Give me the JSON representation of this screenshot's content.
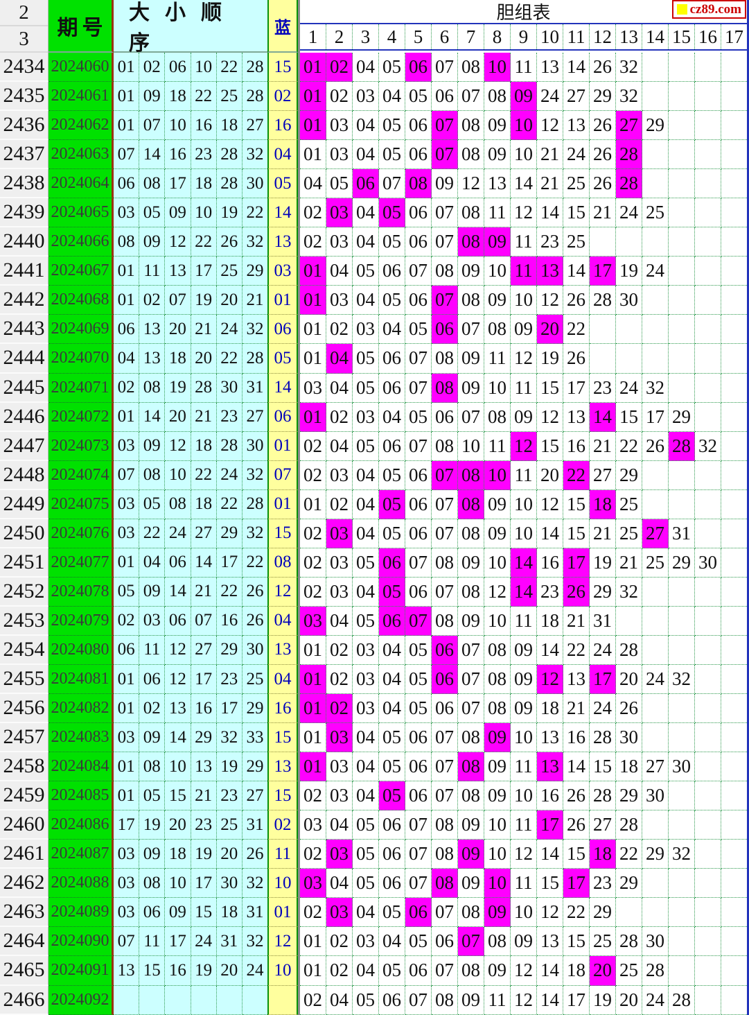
{
  "header": {
    "corner_top": "2",
    "corner_bottom": "3",
    "period_label": "期号",
    "order_label": "大小顺序",
    "blue_label": "蓝",
    "table_title": "胆组表",
    "logo_text": "cz89.com",
    "dan_columns": [
      "1",
      "2",
      "3",
      "4",
      "5",
      "6",
      "7",
      "8",
      "9",
      "10",
      "11",
      "12",
      "13",
      "14",
      "15",
      "16",
      "17"
    ]
  },
  "colors": {
    "period_bg": "#00E100",
    "order_bg": "#CCFFFF",
    "blue_bg": "#FFFF9E",
    "rownum_bg": "#EFEFEF",
    "highlight_magenta": "#FF00FF",
    "blue_text": "#0000BB",
    "grid_green": "#2E9A4E",
    "header_line_blue": "#2233BB",
    "divider_red": "#993311",
    "divider_gray": "#8A8A8A",
    "logo_red": "#CC0000",
    "logo_square_yellow": "#FFFF00"
  },
  "chart_data": {
    "type": "table",
    "title": "胆组表",
    "rows": [
      {
        "no": "2434",
        "period": "2024060",
        "order": [
          "01",
          "02",
          "06",
          "10",
          "22",
          "28"
        ],
        "blue": "15",
        "dan": [
          "01",
          "02",
          "04",
          "05",
          "06",
          "07",
          "08",
          "10",
          "11",
          "13",
          "14",
          "26",
          "32"
        ],
        "hits": [
          0,
          1,
          4,
          7
        ]
      },
      {
        "no": "2435",
        "period": "2024061",
        "order": [
          "01",
          "09",
          "18",
          "22",
          "25",
          "28"
        ],
        "blue": "02",
        "dan": [
          "01",
          "02",
          "03",
          "04",
          "05",
          "06",
          "07",
          "08",
          "09",
          "24",
          "27",
          "29",
          "32"
        ],
        "hits": [
          0,
          8
        ]
      },
      {
        "no": "2436",
        "period": "2024062",
        "order": [
          "01",
          "07",
          "10",
          "16",
          "18",
          "27"
        ],
        "blue": "16",
        "dan": [
          "01",
          "03",
          "04",
          "05",
          "06",
          "07",
          "08",
          "09",
          "10",
          "12",
          "13",
          "26",
          "27",
          "29"
        ],
        "hits": [
          0,
          5,
          8,
          12
        ]
      },
      {
        "no": "2437",
        "period": "2024063",
        "order": [
          "07",
          "14",
          "16",
          "23",
          "28",
          "32"
        ],
        "blue": "04",
        "dan": [
          "01",
          "03",
          "04",
          "05",
          "06",
          "07",
          "08",
          "09",
          "10",
          "21",
          "24",
          "26",
          "28"
        ],
        "hits": [
          5,
          12
        ]
      },
      {
        "no": "2438",
        "period": "2024064",
        "order": [
          "06",
          "08",
          "17",
          "18",
          "28",
          "30"
        ],
        "blue": "05",
        "dan": [
          "04",
          "05",
          "06",
          "07",
          "08",
          "09",
          "12",
          "13",
          "14",
          "21",
          "25",
          "26",
          "28"
        ],
        "hits": [
          2,
          4,
          12
        ]
      },
      {
        "no": "2439",
        "period": "2024065",
        "order": [
          "03",
          "05",
          "09",
          "10",
          "19",
          "22"
        ],
        "blue": "14",
        "dan": [
          "02",
          "03",
          "04",
          "05",
          "06",
          "07",
          "08",
          "11",
          "12",
          "14",
          "15",
          "21",
          "24",
          "25"
        ],
        "hits": [
          1,
          3
        ]
      },
      {
        "no": "2440",
        "period": "2024066",
        "order": [
          "08",
          "09",
          "12",
          "22",
          "26",
          "32"
        ],
        "blue": "13",
        "dan": [
          "02",
          "03",
          "04",
          "05",
          "06",
          "07",
          "08",
          "09",
          "11",
          "23",
          "25"
        ],
        "hits": [
          6,
          7
        ]
      },
      {
        "no": "2441",
        "period": "2024067",
        "order": [
          "01",
          "11",
          "13",
          "17",
          "25",
          "29"
        ],
        "blue": "03",
        "dan": [
          "01",
          "04",
          "05",
          "06",
          "07",
          "08",
          "09",
          "10",
          "11",
          "13",
          "14",
          "17",
          "19",
          "24"
        ],
        "hits": [
          0,
          8,
          9,
          11
        ]
      },
      {
        "no": "2442",
        "period": "2024068",
        "order": [
          "01",
          "02",
          "07",
          "19",
          "20",
          "21"
        ],
        "blue": "01",
        "dan": [
          "01",
          "03",
          "04",
          "05",
          "06",
          "07",
          "08",
          "09",
          "10",
          "12",
          "26",
          "28",
          "30"
        ],
        "hits": [
          0,
          5
        ]
      },
      {
        "no": "2443",
        "period": "2024069",
        "order": [
          "06",
          "13",
          "20",
          "21",
          "24",
          "32"
        ],
        "blue": "06",
        "dan": [
          "01",
          "02",
          "03",
          "04",
          "05",
          "06",
          "07",
          "08",
          "09",
          "20",
          "22"
        ],
        "hits": [
          5,
          9
        ]
      },
      {
        "no": "2444",
        "period": "2024070",
        "order": [
          "04",
          "13",
          "18",
          "20",
          "22",
          "28"
        ],
        "blue": "05",
        "dan": [
          "01",
          "04",
          "05",
          "06",
          "07",
          "08",
          "09",
          "11",
          "12",
          "19",
          "26"
        ],
        "hits": [
          1
        ]
      },
      {
        "no": "2445",
        "period": "2024071",
        "order": [
          "02",
          "08",
          "19",
          "28",
          "30",
          "31"
        ],
        "blue": "14",
        "dan": [
          "03",
          "04",
          "05",
          "06",
          "07",
          "08",
          "09",
          "10",
          "11",
          "15",
          "17",
          "23",
          "24",
          "32"
        ],
        "hits": [
          5
        ]
      },
      {
        "no": "2446",
        "period": "2024072",
        "order": [
          "01",
          "14",
          "20",
          "21",
          "23",
          "27"
        ],
        "blue": "06",
        "dan": [
          "01",
          "02",
          "03",
          "04",
          "05",
          "06",
          "07",
          "08",
          "09",
          "12",
          "13",
          "14",
          "15",
          "17",
          "29"
        ],
        "hits": [
          0,
          11
        ]
      },
      {
        "no": "2447",
        "period": "2024073",
        "order": [
          "03",
          "09",
          "12",
          "18",
          "28",
          "30"
        ],
        "blue": "01",
        "dan": [
          "02",
          "04",
          "05",
          "06",
          "07",
          "08",
          "10",
          "11",
          "12",
          "15",
          "16",
          "21",
          "22",
          "26",
          "28",
          "32"
        ],
        "hits": [
          8,
          14
        ]
      },
      {
        "no": "2448",
        "period": "2024074",
        "order": [
          "07",
          "08",
          "10",
          "22",
          "24",
          "32"
        ],
        "blue": "07",
        "dan": [
          "02",
          "03",
          "04",
          "05",
          "06",
          "07",
          "08",
          "10",
          "11",
          "20",
          "22",
          "27",
          "29"
        ],
        "hits": [
          5,
          6,
          7,
          10
        ]
      },
      {
        "no": "2449",
        "period": "2024075",
        "order": [
          "03",
          "05",
          "08",
          "18",
          "22",
          "28"
        ],
        "blue": "01",
        "dan": [
          "01",
          "02",
          "04",
          "05",
          "06",
          "07",
          "08",
          "09",
          "10",
          "12",
          "15",
          "18",
          "25"
        ],
        "hits": [
          3,
          6,
          11
        ]
      },
      {
        "no": "2450",
        "period": "2024076",
        "order": [
          "03",
          "22",
          "24",
          "27",
          "29",
          "32"
        ],
        "blue": "15",
        "dan": [
          "02",
          "03",
          "04",
          "05",
          "06",
          "07",
          "08",
          "09",
          "10",
          "14",
          "15",
          "21",
          "25",
          "27",
          "31"
        ],
        "hits": [
          1,
          13
        ]
      },
      {
        "no": "2451",
        "period": "2024077",
        "order": [
          "01",
          "04",
          "06",
          "14",
          "17",
          "22"
        ],
        "blue": "08",
        "dan": [
          "02",
          "03",
          "05",
          "06",
          "07",
          "08",
          "09",
          "10",
          "14",
          "16",
          "17",
          "19",
          "21",
          "25",
          "29",
          "30"
        ],
        "hits": [
          3,
          8,
          10
        ]
      },
      {
        "no": "2452",
        "period": "2024078",
        "order": [
          "05",
          "09",
          "14",
          "21",
          "22",
          "26"
        ],
        "blue": "12",
        "dan": [
          "02",
          "03",
          "04",
          "05",
          "06",
          "07",
          "08",
          "12",
          "14",
          "23",
          "26",
          "29",
          "32"
        ],
        "hits": [
          3,
          8,
          10
        ]
      },
      {
        "no": "2453",
        "period": "2024079",
        "order": [
          "02",
          "03",
          "06",
          "07",
          "16",
          "26"
        ],
        "blue": "04",
        "dan": [
          "03",
          "04",
          "05",
          "06",
          "07",
          "08",
          "09",
          "10",
          "11",
          "18",
          "21",
          "31"
        ],
        "hits": [
          0,
          3,
          4
        ]
      },
      {
        "no": "2454",
        "period": "2024080",
        "order": [
          "06",
          "11",
          "12",
          "27",
          "29",
          "30"
        ],
        "blue": "13",
        "dan": [
          "01",
          "02",
          "03",
          "04",
          "05",
          "06",
          "07",
          "08",
          "09",
          "14",
          "22",
          "24",
          "28"
        ],
        "hits": [
          5
        ]
      },
      {
        "no": "2455",
        "period": "2024081",
        "order": [
          "01",
          "06",
          "12",
          "17",
          "23",
          "25"
        ],
        "blue": "04",
        "dan": [
          "01",
          "02",
          "03",
          "04",
          "05",
          "06",
          "07",
          "08",
          "09",
          "12",
          "13",
          "17",
          "20",
          "24",
          "32"
        ],
        "hits": [
          0,
          5,
          9,
          11
        ]
      },
      {
        "no": "2456",
        "period": "2024082",
        "order": [
          "01",
          "02",
          "13",
          "16",
          "17",
          "29"
        ],
        "blue": "16",
        "dan": [
          "01",
          "02",
          "03",
          "04",
          "05",
          "06",
          "07",
          "08",
          "09",
          "18",
          "21",
          "24",
          "26"
        ],
        "hits": [
          0,
          1
        ]
      },
      {
        "no": "2457",
        "period": "2024083",
        "order": [
          "03",
          "09",
          "14",
          "29",
          "32",
          "33"
        ],
        "blue": "15",
        "dan": [
          "01",
          "03",
          "04",
          "05",
          "06",
          "07",
          "08",
          "09",
          "10",
          "13",
          "16",
          "28",
          "30"
        ],
        "hits": [
          1,
          7
        ]
      },
      {
        "no": "2458",
        "period": "2024084",
        "order": [
          "01",
          "08",
          "10",
          "13",
          "19",
          "29"
        ],
        "blue": "13",
        "dan": [
          "01",
          "03",
          "04",
          "05",
          "06",
          "07",
          "08",
          "09",
          "11",
          "13",
          "14",
          "15",
          "18",
          "27",
          "30"
        ],
        "hits": [
          0,
          6,
          9
        ]
      },
      {
        "no": "2459",
        "period": "2024085",
        "order": [
          "01",
          "05",
          "15",
          "21",
          "23",
          "27"
        ],
        "blue": "15",
        "dan": [
          "02",
          "03",
          "04",
          "05",
          "06",
          "07",
          "08",
          "09",
          "10",
          "16",
          "26",
          "28",
          "29",
          "30"
        ],
        "hits": [
          3
        ]
      },
      {
        "no": "2460",
        "period": "2024086",
        "order": [
          "17",
          "19",
          "20",
          "23",
          "25",
          "31"
        ],
        "blue": "02",
        "dan": [
          "03",
          "04",
          "05",
          "06",
          "07",
          "08",
          "09",
          "10",
          "11",
          "17",
          "26",
          "27",
          "28"
        ],
        "hits": [
          9
        ]
      },
      {
        "no": "2461",
        "period": "2024087",
        "order": [
          "03",
          "09",
          "18",
          "19",
          "20",
          "26"
        ],
        "blue": "11",
        "dan": [
          "02",
          "03",
          "05",
          "06",
          "07",
          "08",
          "09",
          "10",
          "12",
          "14",
          "15",
          "18",
          "22",
          "29",
          "32"
        ],
        "hits": [
          1,
          6,
          11
        ]
      },
      {
        "no": "2462",
        "period": "2024088",
        "order": [
          "03",
          "08",
          "10",
          "17",
          "30",
          "32"
        ],
        "blue": "10",
        "dan": [
          "03",
          "04",
          "05",
          "06",
          "07",
          "08",
          "09",
          "10",
          "11",
          "15",
          "17",
          "23",
          "29"
        ],
        "hits": [
          0,
          5,
          7,
          10
        ]
      },
      {
        "no": "2463",
        "period": "2024089",
        "order": [
          "03",
          "06",
          "09",
          "15",
          "18",
          "31"
        ],
        "blue": "01",
        "dan": [
          "02",
          "03",
          "04",
          "05",
          "06",
          "07",
          "08",
          "09",
          "10",
          "12",
          "22",
          "29"
        ],
        "hits": [
          1,
          4,
          7
        ]
      },
      {
        "no": "2464",
        "period": "2024090",
        "order": [
          "07",
          "11",
          "17",
          "24",
          "31",
          "32"
        ],
        "blue": "12",
        "dan": [
          "01",
          "02",
          "03",
          "04",
          "05",
          "06",
          "07",
          "08",
          "09",
          "13",
          "15",
          "25",
          "28",
          "30"
        ],
        "hits": [
          6
        ]
      },
      {
        "no": "2465",
        "period": "2024091",
        "order": [
          "13",
          "15",
          "16",
          "19",
          "20",
          "24"
        ],
        "blue": "10",
        "dan": [
          "01",
          "02",
          "04",
          "05",
          "06",
          "07",
          "08",
          "09",
          "12",
          "14",
          "18",
          "20",
          "25",
          "28"
        ],
        "hits": [
          11
        ]
      },
      {
        "no": "2466",
        "period": "2024092",
        "order": [
          "",
          "",
          "",
          "",
          "",
          ""
        ],
        "blue": "",
        "dan": [
          "02",
          "04",
          "05",
          "06",
          "07",
          "08",
          "09",
          "11",
          "12",
          "14",
          "17",
          "19",
          "20",
          "24",
          "28"
        ],
        "hits": []
      }
    ]
  }
}
